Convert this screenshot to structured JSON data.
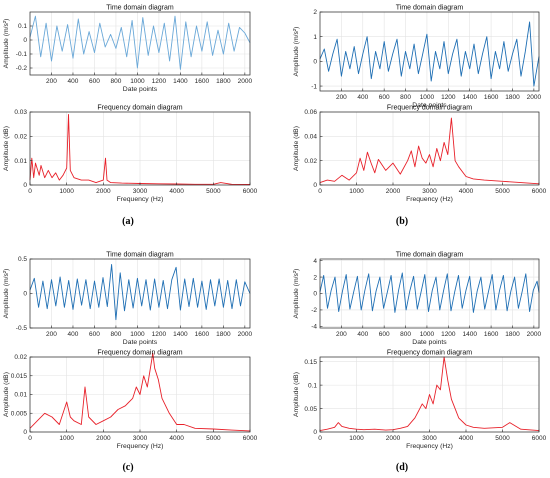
{
  "captions": [
    "(a)",
    "(b)",
    "(c)",
    "(d)"
  ],
  "chart_data": [
    {
      "panel": "a",
      "type": "line",
      "title": "Time domain diagram",
      "xlabel": "Date points",
      "ylabel": "Amplitude (m/s²)",
      "xlim": [
        0,
        2048
      ],
      "ylim": [
        -0.25,
        0.2
      ],
      "xticks": [
        200,
        400,
        600,
        800,
        1000,
        1200,
        1400,
        1600,
        1800,
        2000
      ],
      "xtick_labels": [
        "200",
        "400",
        "600",
        "800",
        "1000",
        "1200",
        "1400",
        "1600",
        "1800",
        "2000"
      ],
      "yticks": [
        -0.2,
        -0.1,
        0,
        0.1
      ],
      "ytick_labels": [
        "-0.2",
        "-0.1",
        "0",
        "0.1"
      ],
      "color": "#6aa8d8",
      "grid": true,
      "x": [
        0,
        50,
        100,
        150,
        200,
        250,
        300,
        350,
        400,
        450,
        500,
        550,
        600,
        650,
        700,
        750,
        800,
        850,
        900,
        950,
        1000,
        1050,
        1100,
        1150,
        1200,
        1250,
        1300,
        1350,
        1400,
        1450,
        1500,
        1550,
        1600,
        1650,
        1700,
        1750,
        1800,
        1850,
        1900,
        1950,
        2000,
        2048
      ],
      "values": [
        0.02,
        0.17,
        -0.12,
        0.12,
        -0.15,
        0.1,
        -0.08,
        0.11,
        -0.13,
        0.15,
        -0.1,
        0.06,
        -0.09,
        0.12,
        -0.05,
        0.04,
        -0.06,
        0.09,
        -0.12,
        0.14,
        -0.2,
        0.16,
        -0.11,
        0.1,
        -0.09,
        0.12,
        -0.15,
        0.17,
        -0.21,
        0.13,
        -0.12,
        0.1,
        -0.08,
        0.13,
        -0.11,
        0.07,
        -0.1,
        0.12,
        -0.08,
        0.09,
        0.05,
        -0.02
      ]
    },
    {
      "panel": "a",
      "type": "line",
      "title": "Frequency domain diagram",
      "xlabel": "Frequency (Hz)",
      "ylabel": "Amplitude (dB)",
      "xlim": [
        0,
        6000
      ],
      "ylim": [
        0,
        0.03
      ],
      "xticks": [
        0,
        1000,
        2000,
        3000,
        4000,
        5000,
        6000
      ],
      "xtick_labels": [
        "0",
        "1000",
        "2000",
        "3000",
        "4000",
        "5000",
        "6000"
      ],
      "yticks": [
        0,
        0.01,
        0.02,
        0.03
      ],
      "ytick_labels": [
        "0",
        "0.01",
        "0.02",
        "0.03"
      ],
      "color": "#e8212a",
      "grid": true,
      "x": [
        0,
        50,
        100,
        150,
        250,
        300,
        400,
        500,
        600,
        700,
        800,
        900,
        1000,
        1050,
        1100,
        1200,
        1400,
        1600,
        1800,
        2000,
        2060,
        2100,
        2200,
        2500,
        3000,
        3500,
        4000,
        4500,
        5000,
        5200,
        5500,
        6000
      ],
      "values": [
        0.002,
        0.011,
        0.003,
        0.009,
        0.004,
        0.008,
        0.003,
        0.006,
        0.003,
        0.005,
        0.002,
        0.004,
        0.007,
        0.029,
        0.006,
        0.003,
        0.002,
        0.002,
        0.001,
        0.002,
        0.011,
        0.002,
        0.001,
        0.0008,
        0.0006,
        0.0005,
        0.0004,
        0.0003,
        0.0003,
        0.001,
        0.0003,
        0.0002
      ]
    },
    {
      "panel": "b",
      "type": "line",
      "title": "Time domain diagram",
      "xlabel": "Date points",
      "ylabel": "Amplitude (m/s²)",
      "xlim": [
        0,
        2048
      ],
      "ylim": [
        -1.2,
        2
      ],
      "xticks": [
        200,
        400,
        600,
        800,
        1000,
        1200,
        1400,
        1600,
        1800,
        2000
      ],
      "xtick_labels": [
        "200",
        "400",
        "600",
        "800",
        "1000",
        "1200",
        "1400",
        "1600",
        "1800",
        "2000"
      ],
      "yticks": [
        -1,
        0,
        1,
        2
      ],
      "ytick_labels": [
        "-1",
        "0",
        "1",
        "2"
      ],
      "color": "#1f6fb4",
      "grid": true,
      "x": [
        0,
        40,
        80,
        120,
        160,
        200,
        240,
        280,
        320,
        360,
        400,
        440,
        480,
        520,
        560,
        600,
        640,
        680,
        720,
        760,
        800,
        840,
        880,
        920,
        960,
        1000,
        1040,
        1080,
        1120,
        1160,
        1200,
        1240,
        1280,
        1320,
        1360,
        1400,
        1440,
        1480,
        1520,
        1560,
        1600,
        1640,
        1680,
        1720,
        1760,
        1800,
        1840,
        1880,
        1920,
        1960,
        2000,
        2048
      ],
      "values": [
        0.1,
        0.5,
        -0.4,
        0.3,
        0.9,
        -0.6,
        0.4,
        -0.3,
        0.6,
        -0.5,
        0.3,
        1.0,
        -0.7,
        0.4,
        -0.3,
        0.8,
        -0.4,
        0.3,
        0.9,
        -0.6,
        0.4,
        -0.3,
        0.7,
        -0.5,
        0.3,
        1.1,
        -0.8,
        0.4,
        -0.3,
        0.8,
        -0.5,
        0.3,
        0.9,
        -0.6,
        0.4,
        -0.3,
        0.7,
        -0.5,
        0.3,
        1.0,
        -0.7,
        0.4,
        -0.3,
        0.8,
        -0.4,
        0.3,
        0.9,
        -0.6,
        0.4,
        1.6,
        -1.0,
        0.2
      ]
    },
    {
      "panel": "b",
      "type": "line",
      "title": "Frequency domain diagram",
      "xlabel": "Frequency (Hz)",
      "ylabel": "Amplitude (dB)",
      "xlim": [
        0,
        6000
      ],
      "ylim": [
        0,
        0.06
      ],
      "xticks": [
        0,
        1000,
        2000,
        3000,
        4000,
        5000,
        6000
      ],
      "xtick_labels": [
        "0",
        "1000",
        "2000",
        "3000",
        "4000",
        "5000",
        "6000"
      ],
      "yticks": [
        0,
        0.02,
        0.04,
        0.06
      ],
      "ytick_labels": [
        "0",
        "0.02",
        "0.04",
        "0.06"
      ],
      "color": "#e8212a",
      "grid": true,
      "x": [
        0,
        200,
        400,
        600,
        800,
        1000,
        1100,
        1200,
        1300,
        1400,
        1500,
        1600,
        1800,
        2000,
        2200,
        2400,
        2500,
        2600,
        2700,
        2800,
        2900,
        3000,
        3100,
        3200,
        3300,
        3400,
        3500,
        3600,
        3700,
        3800,
        4000,
        4200,
        4500,
        5000,
        5500,
        6000
      ],
      "values": [
        0.002,
        0.004,
        0.003,
        0.008,
        0.004,
        0.01,
        0.022,
        0.012,
        0.027,
        0.018,
        0.01,
        0.021,
        0.012,
        0.018,
        0.009,
        0.02,
        0.028,
        0.015,
        0.032,
        0.022,
        0.018,
        0.025,
        0.015,
        0.03,
        0.02,
        0.035,
        0.025,
        0.055,
        0.02,
        0.015,
        0.007,
        0.005,
        0.004,
        0.003,
        0.002,
        0.001
      ]
    },
    {
      "panel": "c",
      "type": "line",
      "title": "Time domain diagram",
      "xlabel": "Date points",
      "ylabel": "Amplitude (m/s²)",
      "xlim": [
        0,
        2048
      ],
      "ylim": [
        -0.5,
        0.5
      ],
      "xticks": [
        200,
        400,
        600,
        800,
        1000,
        1200,
        1400,
        1600,
        1800,
        2000
      ],
      "xtick_labels": [
        "200",
        "400",
        "600",
        "800",
        "1000",
        "1200",
        "1400",
        "1600",
        "1800",
        "2000"
      ],
      "yticks": [
        -0.5,
        0,
        0.5
      ],
      "ytick_labels": [
        "-0.5",
        "0",
        "0.5"
      ],
      "color": "#1f6fb4",
      "grid": true,
      "x": [
        0,
        40,
        80,
        120,
        160,
        200,
        240,
        280,
        320,
        360,
        400,
        440,
        480,
        520,
        560,
        600,
        640,
        680,
        720,
        760,
        800,
        840,
        880,
        920,
        960,
        1000,
        1040,
        1080,
        1120,
        1160,
        1200,
        1240,
        1280,
        1320,
        1360,
        1400,
        1440,
        1480,
        1520,
        1560,
        1600,
        1640,
        1680,
        1720,
        1760,
        1800,
        1840,
        1880,
        1920,
        1960,
        2000,
        2048
      ],
      "values": [
        0.05,
        0.22,
        -0.2,
        0.18,
        -0.22,
        0.2,
        -0.18,
        0.24,
        -0.2,
        0.19,
        -0.23,
        0.21,
        -0.17,
        0.2,
        -0.22,
        0.18,
        -0.2,
        0.23,
        -0.19,
        0.42,
        -0.38,
        0.3,
        -0.25,
        0.2,
        -0.21,
        0.22,
        -0.18,
        0.2,
        -0.24,
        0.21,
        -0.2,
        0.19,
        -0.22,
        0.2,
        0.38,
        -0.24,
        0.21,
        -0.19,
        0.22,
        -0.2,
        0.18,
        -0.23,
        0.2,
        -0.18,
        0.21,
        -0.2,
        0.19,
        -0.22,
        0.2,
        -0.18,
        0.17,
        0.0
      ]
    },
    {
      "panel": "c",
      "type": "line",
      "title": "Frequency domain diagram",
      "xlabel": "Frequency (Hz)",
      "ylabel": "Amplitude (dB)",
      "xlim": [
        0,
        6000
      ],
      "ylim": [
        0,
        0.02
      ],
      "xticks": [
        0,
        1000,
        2000,
        3000,
        4000,
        5000,
        6000
      ],
      "xtick_labels": [
        "0",
        "1000",
        "2000",
        "3000",
        "4000",
        "5000",
        "6000"
      ],
      "yticks": [
        0,
        0.005,
        0.01,
        0.015,
        0.02
      ],
      "ytick_labels": [
        "0",
        "0.005",
        "0.01",
        "0.015",
        "0.02"
      ],
      "color": "#e8212a",
      "grid": true,
      "x": [
        0,
        200,
        400,
        600,
        800,
        1000,
        1100,
        1200,
        1400,
        1500,
        1600,
        1800,
        2000,
        2200,
        2400,
        2600,
        2800,
        2900,
        3000,
        3100,
        3200,
        3300,
        3350,
        3400,
        3500,
        3600,
        3800,
        4000,
        4200,
        4500,
        5000,
        5500,
        6000
      ],
      "values": [
        0.001,
        0.003,
        0.005,
        0.004,
        0.002,
        0.008,
        0.004,
        0.003,
        0.002,
        0.012,
        0.004,
        0.002,
        0.003,
        0.004,
        0.006,
        0.007,
        0.009,
        0.012,
        0.01,
        0.015,
        0.012,
        0.018,
        0.021,
        0.017,
        0.014,
        0.009,
        0.005,
        0.002,
        0.002,
        0.001,
        0.0008,
        0.0005,
        0.0003
      ]
    },
    {
      "panel": "d",
      "type": "line",
      "title": "Time domain diagram",
      "xlabel": "Date points",
      "ylabel": "Amplitude (m/s²)",
      "xlim": [
        0,
        2048
      ],
      "ylim": [
        -4.2,
        4.2
      ],
      "xticks": [
        200,
        400,
        600,
        800,
        1000,
        1200,
        1400,
        1600,
        1800,
        2000
      ],
      "xtick_labels": [
        "200",
        "400",
        "600",
        "800",
        "1000",
        "1200",
        "1400",
        "1600",
        "1800",
        "2000"
      ],
      "yticks": [
        -4,
        -2,
        0,
        2,
        4
      ],
      "ytick_labels": [
        "-4",
        "-2",
        "0",
        "2",
        "4"
      ],
      "color": "#1f6fb4",
      "grid": true,
      "x": [
        0,
        35,
        70,
        105,
        140,
        175,
        210,
        245,
        280,
        315,
        350,
        385,
        420,
        455,
        490,
        525,
        560,
        595,
        630,
        665,
        700,
        735,
        770,
        805,
        840,
        875,
        910,
        945,
        980,
        1015,
        1050,
        1085,
        1120,
        1155,
        1190,
        1225,
        1260,
        1295,
        1330,
        1365,
        1400,
        1435,
        1470,
        1505,
        1540,
        1575,
        1610,
        1645,
        1680,
        1715,
        1750,
        1785,
        1820,
        1855,
        1890,
        1925,
        1960,
        1995,
        2030,
        2048
      ],
      "values": [
        0.2,
        2.2,
        -1.8,
        0.4,
        2.0,
        -2.2,
        0.3,
        2.3,
        -1.9,
        0.2,
        2.1,
        -2.0,
        0.4,
        2.4,
        -2.1,
        0.3,
        2.0,
        -1.8,
        0.2,
        2.2,
        -2.3,
        0.4,
        2.5,
        -2.0,
        0.3,
        2.1,
        -1.9,
        0.2,
        2.3,
        -2.2,
        0.4,
        2.0,
        -2.0,
        0.3,
        2.4,
        -2.1,
        0.2,
        2.2,
        -1.8,
        0.4,
        2.1,
        -2.3,
        0.3,
        2.0,
        -1.9,
        0.2,
        2.3,
        -2.0,
        0.4,
        2.2,
        -2.1,
        0.3,
        2.0,
        -1.8,
        0.2,
        2.4,
        -2.2,
        0.4,
        1.5,
        0.1
      ]
    },
    {
      "panel": "d",
      "type": "line",
      "title": "Frequency domain diagram",
      "xlabel": "Frequency (Hz)",
      "ylabel": "Amplitude (dB)",
      "xlim": [
        0,
        6000
      ],
      "ylim": [
        0,
        0.16
      ],
      "xticks": [
        0,
        1000,
        2000,
        3000,
        4000,
        5000,
        6000
      ],
      "xtick_labels": [
        "0",
        "1000",
        "2000",
        "3000",
        "4000",
        "5000",
        "6000"
      ],
      "yticks": [
        0,
        0.05,
        0.1,
        0.15
      ],
      "ytick_labels": [
        "0",
        "0.05",
        "0.1",
        "0.15"
      ],
      "color": "#e8212a",
      "grid": true,
      "x": [
        0,
        200,
        400,
        500,
        600,
        800,
        1000,
        1200,
        1500,
        1800,
        2000,
        2200,
        2400,
        2600,
        2700,
        2800,
        2900,
        3000,
        3100,
        3200,
        3300,
        3400,
        3500,
        3600,
        3700,
        3800,
        4000,
        4200,
        4500,
        5000,
        5200,
        5500,
        6000
      ],
      "values": [
        0.003,
        0.006,
        0.01,
        0.02,
        0.012,
        0.008,
        0.006,
        0.005,
        0.006,
        0.004,
        0.005,
        0.008,
        0.012,
        0.03,
        0.045,
        0.06,
        0.05,
        0.08,
        0.06,
        0.1,
        0.09,
        0.16,
        0.11,
        0.07,
        0.05,
        0.03,
        0.015,
        0.01,
        0.008,
        0.01,
        0.02,
        0.006,
        0.003
      ]
    }
  ]
}
